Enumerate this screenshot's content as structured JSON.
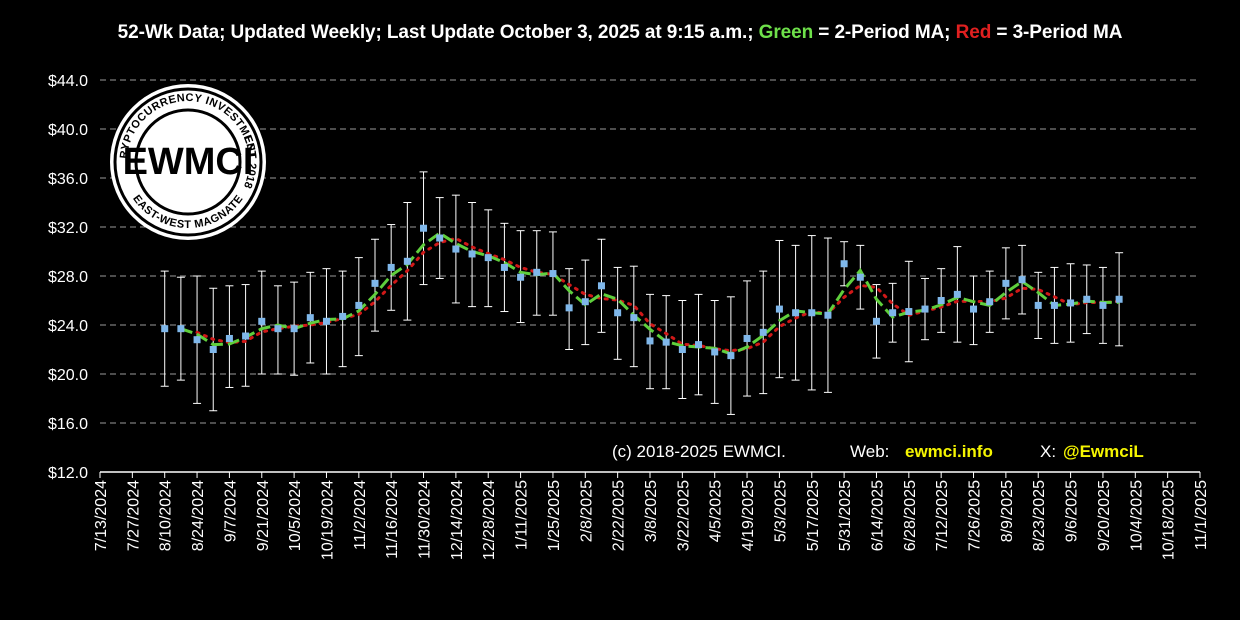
{
  "header": {
    "text_prefix": "52-Wk Data; Updated Weekly; Last Update October 3, 2025 at 9:15 a.m.;",
    "green_word": "Green",
    "green_suffix": "= 2-Period MA;",
    "red_word": "Red",
    "red_suffix": "= 3-Period MA"
  },
  "logo": {
    "main_text": "EWMCI",
    "ring_top": "CRYPTOCURRENCY INVESTMENTS",
    "ring_bottom": "EAST-WEST MAGNATE",
    "ring_right": "EST. 2018"
  },
  "footer": {
    "copyright": "(c) 2018-2025 EWMCI.",
    "web_label": "Web:",
    "web_value": "ewmci.info",
    "x_label": "X:",
    "x_value": "@EwmciL"
  },
  "colors": {
    "background": "#000000",
    "points": "#7fb7ea",
    "ma2": "#5fcf3c",
    "ma3": "#d01818",
    "error_bars": "#ffffff",
    "grid": "#9a9a9a"
  },
  "chart_data": {
    "type": "line",
    "ylim": [
      12,
      44
    ],
    "y_ticks": [
      "$12.0",
      "$16.0",
      "$20.0",
      "$24.0",
      "$28.0",
      "$32.0",
      "$36.0",
      "$40.0",
      "$44.0"
    ],
    "x_ticks": [
      "7/13/2024",
      "7/27/2024",
      "8/10/2024",
      "8/24/2024",
      "9/7/2024",
      "9/21/2024",
      "10/5/2024",
      "10/19/2024",
      "11/2/2024",
      "11/16/2024",
      "11/30/2024",
      "12/14/2024",
      "12/28/2024",
      "1/11/2025",
      "1/25/2025",
      "2/8/2025",
      "2/22/2025",
      "3/8/2025",
      "3/22/2025",
      "4/5/2025",
      "4/19/2025",
      "5/3/2025",
      "5/17/2025",
      "5/31/2025",
      "6/14/2025",
      "6/28/2025",
      "7/12/2025",
      "7/26/2025",
      "8/9/2025",
      "8/23/2025",
      "9/6/2025",
      "9/20/2025",
      "10/4/2025",
      "10/18/2025",
      "11/1/2025"
    ],
    "grid": true,
    "x_start": "7/13/2024",
    "weekly_points": [
      {
        "date": "8/10/2024",
        "value": 23.7,
        "high": 28.4,
        "low": 19.0
      },
      {
        "date": "8/17/2024",
        "value": 23.7,
        "high": 27.9,
        "low": 19.5
      },
      {
        "date": "8/24/2024",
        "value": 22.8,
        "high": 28.0,
        "low": 17.6
      },
      {
        "date": "8/31/2024",
        "value": 22.0,
        "high": 27.0,
        "low": 17.0
      },
      {
        "date": "9/7/2024",
        "value": 22.9,
        "high": 27.2,
        "low": 18.9
      },
      {
        "date": "9/14/2024",
        "value": 23.1,
        "high": 27.3,
        "low": 19.0
      },
      {
        "date": "9/21/2024",
        "value": 24.3,
        "high": 28.4,
        "low": 20.0
      },
      {
        "date": "9/28/2024",
        "value": 23.7,
        "high": 27.2,
        "low": 20.0
      },
      {
        "date": "10/5/2024",
        "value": 23.7,
        "high": 27.5,
        "low": 19.9
      },
      {
        "date": "10/12/2024",
        "value": 24.6,
        "high": 28.3,
        "low": 20.9
      },
      {
        "date": "10/19/2024",
        "value": 24.3,
        "high": 28.6,
        "low": 20.0
      },
      {
        "date": "10/26/2024",
        "value": 24.7,
        "high": 28.4,
        "low": 20.6
      },
      {
        "date": "11/2/2024",
        "value": 25.6,
        "high": 29.5,
        "low": 21.5
      },
      {
        "date": "11/9/2024",
        "value": 27.4,
        "high": 31.0,
        "low": 23.5
      },
      {
        "date": "11/16/2024",
        "value": 28.7,
        "high": 32.2,
        "low": 25.2
      },
      {
        "date": "11/23/2024",
        "value": 29.2,
        "high": 34.0,
        "low": 24.4
      },
      {
        "date": "11/30/2024",
        "value": 31.9,
        "high": 36.5,
        "low": 27.3
      },
      {
        "date": "12/7/2024",
        "value": 31.1,
        "high": 34.4,
        "low": 27.8
      },
      {
        "date": "12/14/2024",
        "value": 30.2,
        "high": 34.6,
        "low": 25.8
      },
      {
        "date": "12/21/2024",
        "value": 29.8,
        "high": 34.0,
        "low": 25.5
      },
      {
        "date": "12/28/2024",
        "value": 29.5,
        "high": 33.4,
        "low": 25.5
      },
      {
        "date": "1/4/2025",
        "value": 28.7,
        "high": 32.3,
        "low": 25.1
      },
      {
        "date": "1/11/2025",
        "value": 27.9,
        "high": 31.7,
        "low": 24.2
      },
      {
        "date": "1/18/2025",
        "value": 28.3,
        "high": 31.7,
        "low": 24.8
      },
      {
        "date": "1/25/2025",
        "value": 28.2,
        "high": 31.6,
        "low": 24.8
      },
      {
        "date": "2/1/2025",
        "value": 25.4,
        "high": 28.6,
        "low": 22.0
      },
      {
        "date": "2/8/2025",
        "value": 25.9,
        "high": 29.3,
        "low": 22.4
      },
      {
        "date": "2/15/2025",
        "value": 27.2,
        "high": 31.0,
        "low": 23.4
      },
      {
        "date": "2/22/2025",
        "value": 25.0,
        "high": 28.7,
        "low": 21.2
      },
      {
        "date": "3/1/2025",
        "value": 24.6,
        "high": 28.8,
        "low": 20.6
      },
      {
        "date": "3/8/2025",
        "value": 22.7,
        "high": 26.5,
        "low": 18.8
      },
      {
        "date": "3/15/2025",
        "value": 22.6,
        "high": 26.4,
        "low": 18.8
      },
      {
        "date": "3/22/2025",
        "value": 22.0,
        "high": 26.0,
        "low": 18.0
      },
      {
        "date": "3/29/2025",
        "value": 22.4,
        "high": 26.5,
        "low": 18.3
      },
      {
        "date": "4/5/2025",
        "value": 21.8,
        "high": 26.0,
        "low": 17.6
      },
      {
        "date": "4/12/2025",
        "value": 21.5,
        "high": 26.3,
        "low": 16.7
      },
      {
        "date": "4/19/2025",
        "value": 22.9,
        "high": 27.6,
        "low": 18.2
      },
      {
        "date": "4/26/2025",
        "value": 23.4,
        "high": 28.4,
        "low": 18.4
      },
      {
        "date": "5/3/2025",
        "value": 25.3,
        "high": 30.9,
        "low": 19.7
      },
      {
        "date": "5/10/2025",
        "value": 25.0,
        "high": 30.5,
        "low": 19.5
      },
      {
        "date": "5/17/2025",
        "value": 25.0,
        "high": 31.3,
        "low": 18.7
      },
      {
        "date": "5/24/2025",
        "value": 24.8,
        "high": 31.1,
        "low": 18.5
      },
      {
        "date": "5/31/2025",
        "value": 29.0,
        "high": 30.8,
        "low": 27.2
      },
      {
        "date": "6/7/2025",
        "value": 27.9,
        "high": 30.5,
        "low": 25.3
      },
      {
        "date": "6/14/2025",
        "value": 24.3,
        "high": 27.3,
        "low": 21.3
      },
      {
        "date": "6/21/2025",
        "value": 25.0,
        "high": 27.4,
        "low": 22.6
      },
      {
        "date": "6/28/2025",
        "value": 25.1,
        "high": 29.2,
        "low": 21.0
      },
      {
        "date": "7/5/2025",
        "value": 25.3,
        "high": 27.8,
        "low": 22.8
      },
      {
        "date": "7/12/2025",
        "value": 26.0,
        "high": 28.6,
        "low": 23.4
      },
      {
        "date": "7/19/2025",
        "value": 26.5,
        "high": 30.4,
        "low": 22.6
      },
      {
        "date": "7/26/2025",
        "value": 25.3,
        "high": 28.0,
        "low": 22.4
      },
      {
        "date": "8/2/2025",
        "value": 25.9,
        "high": 28.4,
        "low": 23.4
      },
      {
        "date": "8/9/2025",
        "value": 27.4,
        "high": 30.3,
        "low": 24.5
      },
      {
        "date": "8/16/2025",
        "value": 27.7,
        "high": 30.5,
        "low": 24.9
      },
      {
        "date": "8/23/2025",
        "value": 25.6,
        "high": 28.3,
        "low": 22.9
      },
      {
        "date": "8/30/2025",
        "value": 25.6,
        "high": 28.7,
        "low": 22.5
      },
      {
        "date": "9/6/2025",
        "value": 25.8,
        "high": 29.0,
        "low": 22.6
      },
      {
        "date": "9/13/2025",
        "value": 26.1,
        "high": 28.9,
        "low": 23.3
      },
      {
        "date": "9/20/2025",
        "value": 25.6,
        "high": 28.7,
        "low": 22.5
      },
      {
        "date": "9/27/2025",
        "value": 26.1,
        "high": 29.9,
        "low": 22.3
      }
    ]
  }
}
